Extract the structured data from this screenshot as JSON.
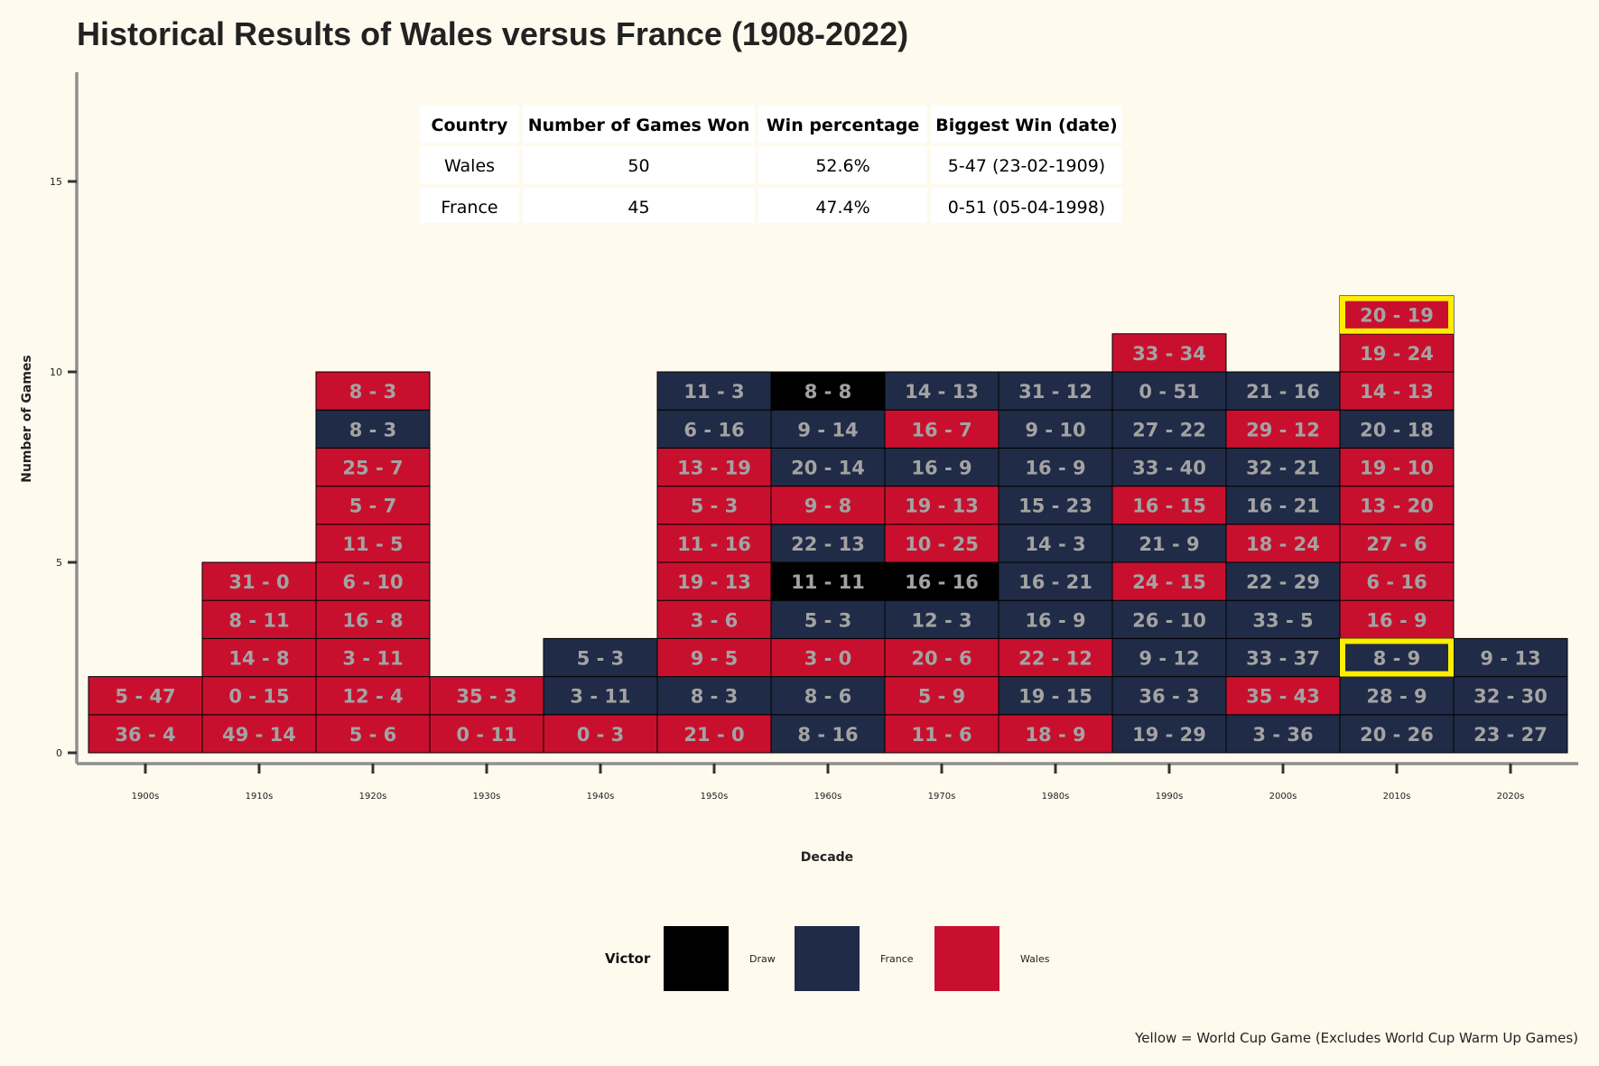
{
  "chart_data": {
    "type": "table",
    "title": "Historical Results of Wales versus France (1908-2022)",
    "xlabel": "Decade",
    "ylabel": "Number of Games",
    "ylim": [
      0,
      18
    ],
    "yticks": [
      0,
      5,
      10,
      15
    ],
    "grid": false,
    "categories": [
      "1900s",
      "1910s",
      "1920s",
      "1930s",
      "1940s",
      "1950s",
      "1960s",
      "1970s",
      "1980s",
      "1990s",
      "2000s",
      "2010s",
      "2020s"
    ],
    "colors": {
      "Draw": "#000000",
      "France": "#202b47",
      "Wales": "#c8102e",
      "World Cup": "#ffee00"
    },
    "legend": {
      "title": "Victor",
      "position": "bottom",
      "entries": [
        "Draw",
        "France",
        "Wales"
      ]
    },
    "caption": "Yellow = World Cup Game (Excludes World Cup Warm Up Games)",
    "games": [
      [
        {
          "score": "36 - 4",
          "victor": "Wales"
        },
        {
          "score": "5 - 47",
          "victor": "Wales"
        }
      ],
      [
        {
          "score": "49 - 14",
          "victor": "Wales"
        },
        {
          "score": "0 - 15",
          "victor": "Wales"
        },
        {
          "score": "14 - 8",
          "victor": "Wales"
        },
        {
          "score": "8 - 11",
          "victor": "Wales"
        },
        {
          "score": "31 - 0",
          "victor": "Wales"
        }
      ],
      [
        {
          "score": "5 - 6",
          "victor": "Wales"
        },
        {
          "score": "12 - 4",
          "victor": "Wales"
        },
        {
          "score": "3 - 11",
          "victor": "Wales"
        },
        {
          "score": "16 - 8",
          "victor": "Wales"
        },
        {
          "score": "6 - 10",
          "victor": "Wales"
        },
        {
          "score": "11 - 5",
          "victor": "Wales"
        },
        {
          "score": "5 - 7",
          "victor": "Wales"
        },
        {
          "score": "25 - 7",
          "victor": "Wales"
        },
        {
          "score": "8 - 3",
          "victor": "France"
        },
        {
          "score": "8 - 3",
          "victor": "Wales"
        }
      ],
      [
        {
          "score": "0 - 11",
          "victor": "Wales"
        },
        {
          "score": "35 - 3",
          "victor": "Wales"
        }
      ],
      [
        {
          "score": "0 - 3",
          "victor": "Wales"
        },
        {
          "score": "3 - 11",
          "victor": "France"
        },
        {
          "score": "5 - 3",
          "victor": "France"
        }
      ],
      [
        {
          "score": "21 - 0",
          "victor": "Wales"
        },
        {
          "score": "8 - 3",
          "victor": "France"
        },
        {
          "score": "9 - 5",
          "victor": "Wales"
        },
        {
          "score": "3 - 6",
          "victor": "Wales"
        },
        {
          "score": "19 - 13",
          "victor": "Wales"
        },
        {
          "score": "11 - 16",
          "victor": "Wales"
        },
        {
          "score": "5 - 3",
          "victor": "Wales"
        },
        {
          "score": "13 - 19",
          "victor": "Wales"
        },
        {
          "score": "6 - 16",
          "victor": "France"
        },
        {
          "score": "11 - 3",
          "victor": "France"
        }
      ],
      [
        {
          "score": "8 - 16",
          "victor": "France"
        },
        {
          "score": "8 - 6",
          "victor": "France"
        },
        {
          "score": "3 - 0",
          "victor": "Wales"
        },
        {
          "score": "5 - 3",
          "victor": "France"
        },
        {
          "score": "11 - 11",
          "victor": "Draw"
        },
        {
          "score": "22 - 13",
          "victor": "France"
        },
        {
          "score": "9 - 8",
          "victor": "Wales"
        },
        {
          "score": "20 - 14",
          "victor": "France"
        },
        {
          "score": "9 - 14",
          "victor": "France"
        },
        {
          "score": "8 - 8",
          "victor": "Draw"
        }
      ],
      [
        {
          "score": "11 - 6",
          "victor": "Wales"
        },
        {
          "score": "5 - 9",
          "victor": "Wales"
        },
        {
          "score": "20 - 6",
          "victor": "Wales"
        },
        {
          "score": "12 - 3",
          "victor": "France"
        },
        {
          "score": "16 - 16",
          "victor": "Draw"
        },
        {
          "score": "10 - 25",
          "victor": "Wales"
        },
        {
          "score": "19 - 13",
          "victor": "Wales"
        },
        {
          "score": "16 - 9",
          "victor": "France"
        },
        {
          "score": "16 - 7",
          "victor": "Wales"
        },
        {
          "score": "14 - 13",
          "victor": "France"
        }
      ],
      [
        {
          "score": "18 - 9",
          "victor": "Wales"
        },
        {
          "score": "19 - 15",
          "victor": "France"
        },
        {
          "score": "22 - 12",
          "victor": "Wales"
        },
        {
          "score": "16 - 9",
          "victor": "France"
        },
        {
          "score": "16 - 21",
          "victor": "France"
        },
        {
          "score": "14 - 3",
          "victor": "France"
        },
        {
          "score": "15 - 23",
          "victor": "France"
        },
        {
          "score": "16 - 9",
          "victor": "France"
        },
        {
          "score": "9 - 10",
          "victor": "France"
        },
        {
          "score": "31 - 12",
          "victor": "France"
        }
      ],
      [
        {
          "score": "19 - 29",
          "victor": "France"
        },
        {
          "score": "36 - 3",
          "victor": "France"
        },
        {
          "score": "9 - 12",
          "victor": "France"
        },
        {
          "score": "26 - 10",
          "victor": "France"
        },
        {
          "score": "24 - 15",
          "victor": "Wales"
        },
        {
          "score": "21 - 9",
          "victor": "France"
        },
        {
          "score": "16 - 15",
          "victor": "Wales"
        },
        {
          "score": "33 - 40",
          "victor": "France"
        },
        {
          "score": "27 - 22",
          "victor": "France"
        },
        {
          "score": "0 - 51",
          "victor": "France"
        },
        {
          "score": "33 - 34",
          "victor": "Wales"
        }
      ],
      [
        {
          "score": "3 - 36",
          "victor": "France"
        },
        {
          "score": "35 - 43",
          "victor": "Wales"
        },
        {
          "score": "33 - 37",
          "victor": "France"
        },
        {
          "score": "33 - 5",
          "victor": "France"
        },
        {
          "score": "22 - 29",
          "victor": "France"
        },
        {
          "score": "18 - 24",
          "victor": "Wales"
        },
        {
          "score": "16 - 21",
          "victor": "France"
        },
        {
          "score": "32 - 21",
          "victor": "France"
        },
        {
          "score": "29 - 12",
          "victor": "Wales"
        },
        {
          "score": "21 - 16",
          "victor": "France"
        }
      ],
      [
        {
          "score": "20 - 26",
          "victor": "France"
        },
        {
          "score": "28 - 9",
          "victor": "France"
        },
        {
          "score": "8 - 9",
          "victor": "France",
          "world_cup": true
        },
        {
          "score": "16 - 9",
          "victor": "Wales"
        },
        {
          "score": "6 - 16",
          "victor": "Wales"
        },
        {
          "score": "27 - 6",
          "victor": "Wales"
        },
        {
          "score": "13 - 20",
          "victor": "Wales"
        },
        {
          "score": "19 - 10",
          "victor": "Wales"
        },
        {
          "score": "20 - 18",
          "victor": "France"
        },
        {
          "score": "14 - 13",
          "victor": "Wales"
        },
        {
          "score": "19 - 24",
          "victor": "Wales"
        },
        {
          "score": "20 - 19",
          "victor": "Wales",
          "world_cup": true
        }
      ],
      [
        {
          "score": "23 - 27",
          "victor": "France"
        },
        {
          "score": "32 - 30",
          "victor": "France"
        },
        {
          "score": "9 - 13",
          "victor": "France"
        }
      ]
    ],
    "summary_table": {
      "headers": [
        "Country",
        "Number of Games Won",
        "Win percentage",
        "Biggest Win (date)"
      ],
      "rows": [
        [
          "Wales",
          "50",
          "52.6%",
          "5-47 (23-02-1909)"
        ],
        [
          "France",
          "45",
          "47.4%",
          "0-51 (05-04-1998)"
        ]
      ]
    }
  }
}
